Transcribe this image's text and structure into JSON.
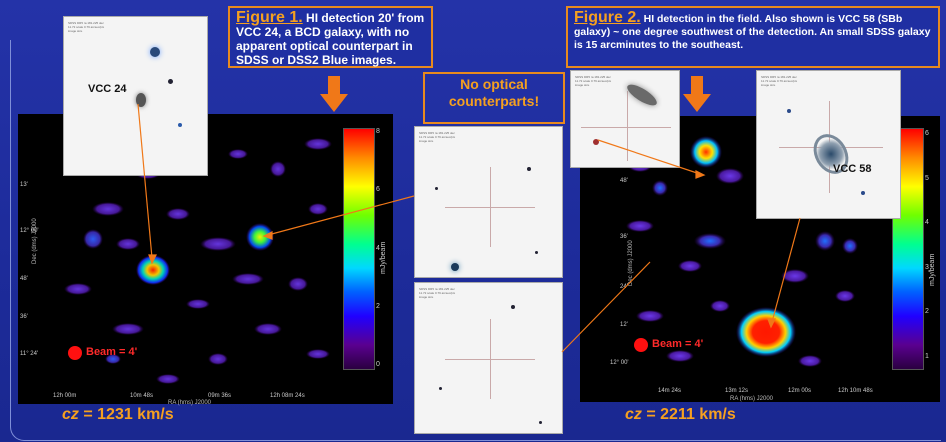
{
  "figure1": {
    "fig_label": "Figure 1.",
    "text": " HI detection 20' from  VCC 24, a BCD galaxy, with no apparent optical counterpart in SDSS or DSS2 Blue images."
  },
  "figure2": {
    "fig_label": "Figure 2.",
    "text": " HI detection in the field.  Also shown is VCC 58 (SBb galaxy) ~ one degree southwest of the detection.  An small SDSS galaxy is 15 arcminutes to the southeast."
  },
  "callout": {
    "line1": "No optical",
    "line2": "counterparts!"
  },
  "thumbs": {
    "vcc24_label": "VCC 24",
    "vcc58_label": "VCC 58",
    "header": "SDSS DR5 ra 181.225 dec 11.72 scale 0.79  arcsec/pix image size"
  },
  "panel1": {
    "beam": "Beam = 4'",
    "ra_ticks": [
      "12h 00m",
      "10m 48s",
      "09m 36s",
      "12h 08m 24s"
    ],
    "dec_ticks": [
      "13'",
      "12° 00'",
      "48'",
      "36'",
      "11° 24'"
    ],
    "ra_label": "RA (hms) J2000",
    "dec_label": "Dec (dms) J2000",
    "cb_ticks": [
      "8",
      "6",
      "4",
      "2",
      "0"
    ],
    "cb_label": "mJy/beam",
    "cz_prefix": "cz",
    "cz_value": " = 1231 km/s"
  },
  "panel2": {
    "beam": "Beam = 4'",
    "ra_ticks": [
      "14m 24s",
      "13m 12s",
      "12m 00s",
      "12h 10m 48s"
    ],
    "dec_ticks": [
      "48'",
      "36'",
      "24'",
      "12'",
      "12° 00'"
    ],
    "ra_label": "RA (hms) J2000",
    "dec_label": "Dec (dms) J2000",
    "cb_ticks": [
      "6",
      "5",
      "4",
      "3",
      "2",
      "1"
    ],
    "cb_label": "mJy/beam",
    "cz_prefix": "cz",
    "cz_value": " = 2211 km/s"
  },
  "colors": {
    "background": "#1f2da0",
    "accent": "#f07818",
    "caption_text": "#ffffff",
    "beam": "#ff1010"
  }
}
